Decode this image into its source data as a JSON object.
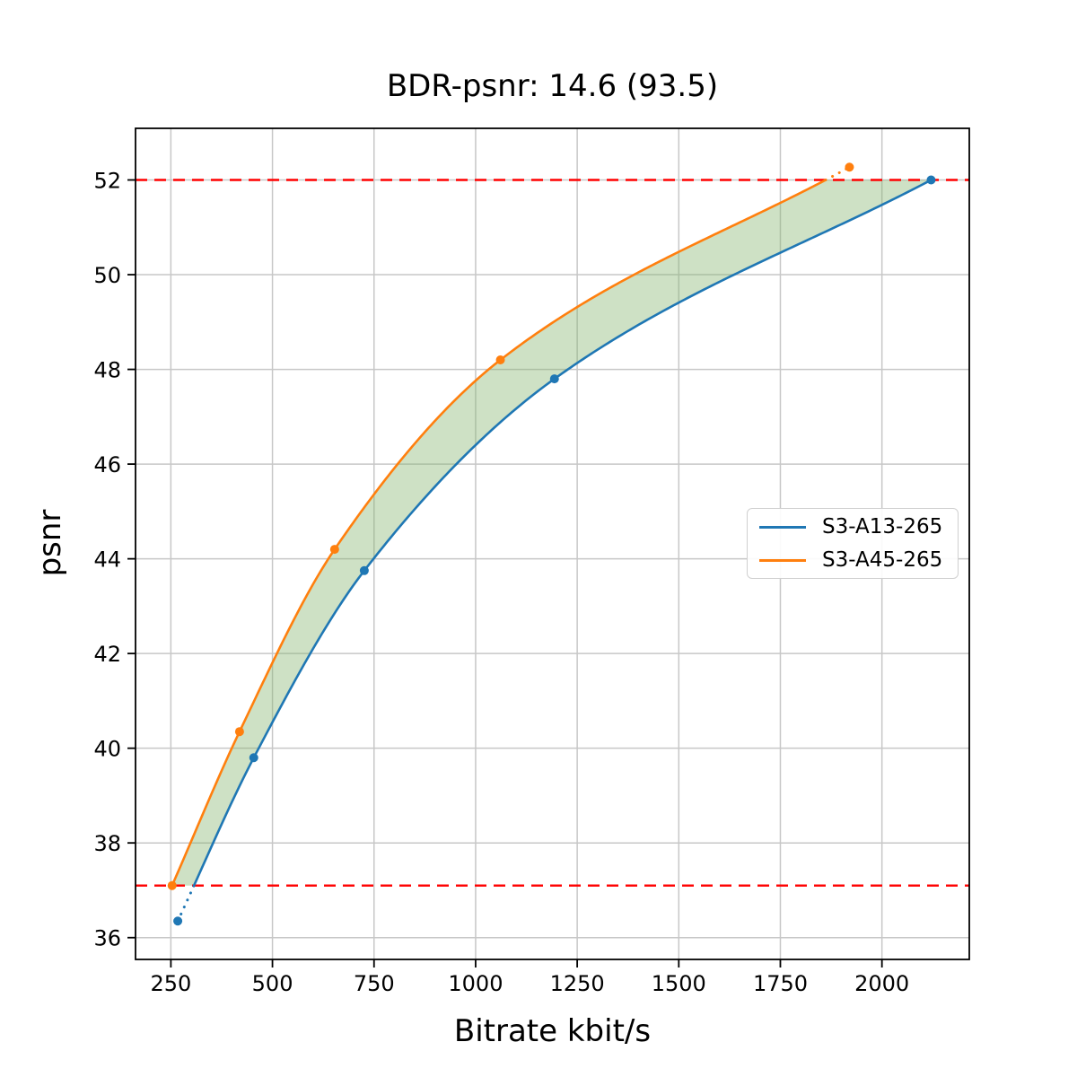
{
  "chart_data": {
    "type": "line",
    "title": "BDR-psnr: 14.6 (93.5)",
    "xlabel": "Bitrate kbit/s",
    "ylabel": "psnr",
    "xlim": [
      163,
      2215
    ],
    "ylim": [
      35.54,
      53.09
    ],
    "xticks": [
      250,
      500,
      750,
      1000,
      1250,
      1500,
      1750,
      2000
    ],
    "yticks": [
      36,
      38,
      40,
      42,
      44,
      46,
      48,
      50,
      52
    ],
    "grid": true,
    "grid_color": "#c7c7c7",
    "axis_color": "#000000",
    "background": "#ffffff",
    "legend_position": "center right",
    "series": [
      {
        "name": "S3-A13-265",
        "color": "#1f77b4",
        "x": [
          267,
          454,
          726,
          1194,
          2121
        ],
        "y": [
          36.35,
          39.8,
          43.75,
          47.8,
          52.0
        ]
      },
      {
        "name": "S3-A45-265",
        "color": "#ff7f0e",
        "x": [
          253,
          419,
          653,
          1061,
          1920
        ],
        "y": [
          37.1,
          40.35,
          44.2,
          48.2,
          52.27
        ]
      }
    ],
    "integration_bounds": {
      "lower_psnr": 37.1,
      "upper_psnr": 52.0,
      "line_color": "#ff0000",
      "line_style": "dashed"
    },
    "fill_between": {
      "color": "#84b56e",
      "opacity": 0.4
    }
  }
}
